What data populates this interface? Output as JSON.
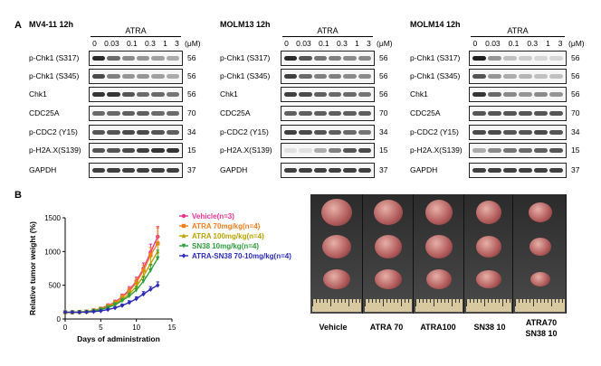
{
  "figure": {
    "panel_a_label": "A",
    "panel_b_label": "B"
  },
  "blots": [
    {
      "title": "MV4-11  12h",
      "treatment": "ATRA",
      "doses": [
        "0",
        "0.03",
        "0.1",
        "0.3",
        "1",
        "3"
      ],
      "unit": "(μM)",
      "rows": [
        {
          "label": "p-Chk1 (S317)",
          "kda": "56",
          "intensities": [
            0.9,
            0.6,
            0.45,
            0.4,
            0.35,
            0.3
          ]
        },
        {
          "label": "p-Chk1 (S345)",
          "kda": "56",
          "intensities": [
            0.75,
            0.5,
            0.4,
            0.4,
            0.35,
            0.3
          ]
        },
        {
          "label": "Chk1",
          "kda": "56",
          "intensities": [
            0.85,
            0.85,
            0.7,
            0.6,
            0.6,
            0.55
          ]
        },
        {
          "label": "CDC25A",
          "kda": "70",
          "intensities": [
            0.6,
            0.6,
            0.65,
            0.65,
            0.6,
            0.6
          ]
        },
        {
          "label": "p-CDC2 (Y15)",
          "kda": "34",
          "intensities": [
            0.7,
            0.7,
            0.75,
            0.75,
            0.7,
            0.65
          ]
        },
        {
          "label": "p-H2A.X(S139)",
          "kda": "15",
          "intensities": [
            0.7,
            0.7,
            0.75,
            0.8,
            0.85,
            0.85
          ]
        },
        {
          "label": "GAPDH",
          "kda": "37",
          "intensities": [
            0.8,
            0.8,
            0.8,
            0.8,
            0.8,
            0.8
          ]
        }
      ]
    },
    {
      "title": "MOLM13  12h",
      "treatment": "ATRA",
      "doses": [
        "0",
        "0.03",
        "0.1",
        "0.3",
        "1",
        "3"
      ],
      "unit": "(μM)",
      "rows": [
        {
          "label": "p-Chk1 (S317)",
          "kda": "56",
          "intensities": [
            0.9,
            0.7,
            0.55,
            0.5,
            0.45,
            0.45
          ]
        },
        {
          "label": "p-Chk1 (S345)",
          "kda": "56",
          "intensities": [
            0.8,
            0.6,
            0.5,
            0.5,
            0.45,
            0.45
          ]
        },
        {
          "label": "Chk1",
          "kda": "56",
          "intensities": [
            0.8,
            0.75,
            0.65,
            0.6,
            0.6,
            0.55
          ]
        },
        {
          "label": "CDC25A",
          "kda": "70",
          "intensities": [
            0.65,
            0.65,
            0.65,
            0.65,
            0.65,
            0.65
          ]
        },
        {
          "label": "p-CDC2 (Y15)",
          "kda": "34",
          "intensities": [
            0.8,
            0.75,
            0.7,
            0.65,
            0.6,
            0.55
          ]
        },
        {
          "label": "p-H2A.X(S139)",
          "kda": "15",
          "intensities": [
            0.05,
            0.05,
            0.3,
            0.5,
            0.7,
            0.75
          ]
        },
        {
          "label": "GAPDH",
          "kda": "37",
          "intensities": [
            0.8,
            0.8,
            0.8,
            0.8,
            0.8,
            0.8
          ]
        }
      ]
    },
    {
      "title": "MOLM14  12h",
      "treatment": "ATRA",
      "doses": [
        "0",
        "0.03",
        "0.1",
        "0.3",
        "1",
        "3"
      ],
      "unit": "(μM)",
      "rows": [
        {
          "label": "p-Chk1 (S317)",
          "kda": "56",
          "intensities": [
            0.95,
            0.4,
            0.2,
            0.15,
            0.1,
            0.1
          ]
        },
        {
          "label": "p-Chk1 (S345)",
          "kda": "56",
          "intensities": [
            0.7,
            0.4,
            0.3,
            0.25,
            0.2,
            0.2
          ]
        },
        {
          "label": "Chk1",
          "kda": "56",
          "intensities": [
            0.85,
            0.6,
            0.45,
            0.4,
            0.45,
            0.4
          ]
        },
        {
          "label": "CDC25A",
          "kda": "70",
          "intensities": [
            0.7,
            0.7,
            0.7,
            0.7,
            0.7,
            0.7
          ]
        },
        {
          "label": "p-CDC2 (Y15)",
          "kda": "34",
          "intensities": [
            0.75,
            0.75,
            0.7,
            0.7,
            0.75,
            0.7
          ]
        },
        {
          "label": "p-H2A.X(S139)",
          "kda": "15",
          "intensities": [
            0.3,
            0.45,
            0.55,
            0.6,
            0.65,
            0.7
          ]
        },
        {
          "label": "GAPDH",
          "kda": "37",
          "intensities": [
            0.8,
            0.8,
            0.8,
            0.8,
            0.8,
            0.8
          ]
        }
      ]
    }
  ],
  "chart_data": {
    "type": "line",
    "title": "",
    "xlabel": "Days of administration",
    "ylabel": "Relative tumor weight (%)",
    "xlim": [
      0,
      15
    ],
    "ylim": [
      0,
      1500
    ],
    "xticks": [
      "0",
      "5",
      "10",
      "15"
    ],
    "yticks": [
      "0",
      "500",
      "1000",
      "1500"
    ],
    "x": [
      0,
      1,
      2,
      3,
      4,
      5,
      6,
      7,
      8,
      9,
      10,
      11,
      12,
      13
    ],
    "legend_position": "top-right",
    "series": [
      {
        "name": "Vehicle(n=3)",
        "color": "#e8338f",
        "marker": "circle",
        "values": [
          100,
          100,
          105,
          110,
          130,
          155,
          200,
          250,
          330,
          430,
          560,
          750,
          990,
          1220
        ],
        "errors": [
          10,
          10,
          10,
          10,
          15,
          20,
          25,
          30,
          40,
          50,
          60,
          80,
          120,
          150
        ]
      },
      {
        "name": "ATRA 70mg/kg(n=4)",
        "color": "#f07f1f",
        "marker": "square",
        "values": [
          100,
          100,
          105,
          110,
          128,
          150,
          190,
          240,
          320,
          410,
          540,
          720,
          950,
          1120
        ],
        "errors": [
          10,
          10,
          10,
          10,
          15,
          20,
          25,
          30,
          40,
          50,
          60,
          80,
          110,
          230
        ]
      },
      {
        "name": "ATRA 100mg/kg(n=4)",
        "color": "#b8a300",
        "marker": "triangle",
        "values": [
          100,
          100,
          103,
          108,
          125,
          145,
          180,
          225,
          290,
          370,
          480,
          640,
          820,
          1000
        ],
        "errors": [
          10,
          10,
          10,
          10,
          15,
          20,
          25,
          30,
          40,
          50,
          60,
          80,
          100,
          130
        ]
      },
      {
        "name": "SN38 10mg/kg(n=4)",
        "color": "#2e9e3a",
        "marker": "triangle-down",
        "values": [
          100,
          100,
          102,
          106,
          120,
          140,
          170,
          210,
          270,
          340,
          430,
          560,
          720,
          900
        ],
        "errors": [
          10,
          10,
          10,
          10,
          15,
          20,
          25,
          30,
          35,
          45,
          55,
          70,
          90,
          120
        ]
      },
      {
        "name": "ATRA-SN38 70-10mg/kg(n=4)",
        "color": "#2b2bb8",
        "marker": "diamond",
        "values": [
          100,
          100,
          100,
          103,
          110,
          120,
          140,
          165,
          200,
          245,
          300,
          370,
          440,
          500
        ],
        "errors": [
          5,
          5,
          5,
          5,
          8,
          10,
          12,
          15,
          20,
          25,
          30,
          35,
          40,
          50
        ]
      }
    ]
  },
  "tumors": {
    "groups": [
      {
        "label_line1": "Vehicle",
        "label_line2": ""
      },
      {
        "label_line1": "ATRA 70",
        "label_line2": ""
      },
      {
        "label_line1": "ATRA100",
        "label_line2": ""
      },
      {
        "label_line1": "SN38 10",
        "label_line2": ""
      },
      {
        "label_line1": "ATRA70",
        "label_line2": "SN38 10"
      }
    ],
    "tumor_color": "#b05a5a",
    "ruler_color": "#d9c9a0"
  }
}
